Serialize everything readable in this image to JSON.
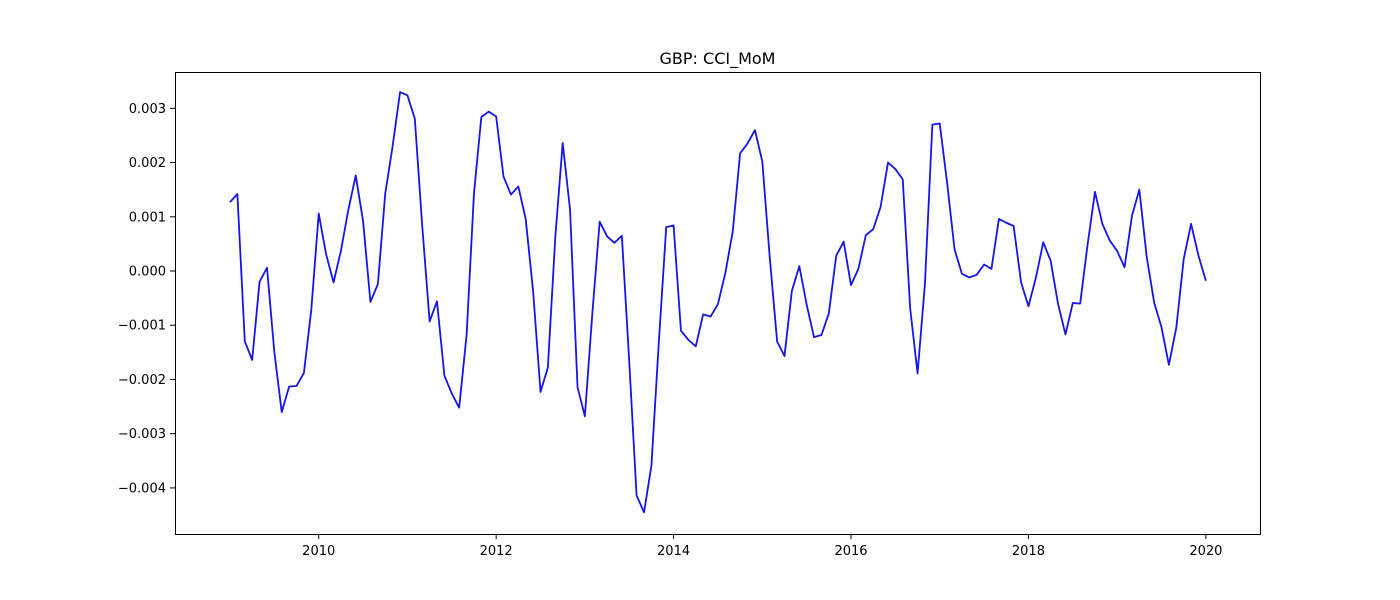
{
  "chart_data": {
    "type": "line",
    "title": "GBP: CCI_MoM",
    "xlabel": "",
    "ylabel": "",
    "xlim": [
      2008.38,
      2020.61
    ],
    "ylim": [
      -0.00485,
      0.00367
    ],
    "x_ticks": [
      2010,
      2012,
      2014,
      2016,
      2018,
      2020
    ],
    "y_ticks": [
      -0.004,
      -0.003,
      -0.002,
      -0.001,
      0.0,
      0.001,
      0.002,
      0.003
    ],
    "x_tick_labels": [
      "2010",
      "2012",
      "2014",
      "2016",
      "2018",
      "2020"
    ],
    "y_tick_labels": [
      "−0.004",
      "−0.003",
      "−0.002",
      "−0.001",
      "0.000",
      "0.001",
      "0.002",
      "0.003"
    ],
    "grid": false,
    "series": [
      {
        "color": "#1515e6",
        "x": [
          2009.0,
          2009.083,
          2009.167,
          2009.25,
          2009.333,
          2009.417,
          2009.5,
          2009.583,
          2009.667,
          2009.75,
          2009.833,
          2009.917,
          2010.0,
          2010.083,
          2010.167,
          2010.25,
          2010.333,
          2010.417,
          2010.5,
          2010.583,
          2010.667,
          2010.75,
          2010.833,
          2010.917,
          2011.0,
          2011.083,
          2011.167,
          2011.25,
          2011.333,
          2011.417,
          2011.5,
          2011.583,
          2011.667,
          2011.75,
          2011.833,
          2011.917,
          2012.0,
          2012.083,
          2012.167,
          2012.25,
          2012.333,
          2012.417,
          2012.5,
          2012.583,
          2012.667,
          2012.75,
          2012.833,
          2012.917,
          2013.0,
          2013.083,
          2013.167,
          2013.25,
          2013.333,
          2013.417,
          2013.5,
          2013.583,
          2013.667,
          2013.75,
          2013.833,
          2013.917,
          2014.0,
          2014.083,
          2014.167,
          2014.25,
          2014.333,
          2014.417,
          2014.5,
          2014.583,
          2014.667,
          2014.75,
          2014.833,
          2014.917,
          2015.0,
          2015.083,
          2015.167,
          2015.25,
          2015.333,
          2015.417,
          2015.5,
          2015.583,
          2015.667,
          2015.75,
          2015.833,
          2015.917,
          2016.0,
          2016.083,
          2016.167,
          2016.25,
          2016.333,
          2016.417,
          2016.5,
          2016.583,
          2016.667,
          2016.75,
          2016.833,
          2016.917,
          2017.0,
          2017.083,
          2017.167,
          2017.25,
          2017.333,
          2017.417,
          2017.5,
          2017.583,
          2017.667,
          2017.75,
          2017.833,
          2017.917,
          2018.0,
          2018.083,
          2018.167,
          2018.25,
          2018.333,
          2018.417,
          2018.5,
          2018.583,
          2018.667,
          2018.75,
          2018.833,
          2018.917,
          2019.0,
          2019.083,
          2019.167,
          2019.25,
          2019.333,
          2019.417,
          2019.5,
          2019.583,
          2019.667,
          2019.75,
          2019.833,
          2019.917,
          2020.0
        ],
        "values": [
          0.00127,
          0.00142,
          -0.0013,
          -0.00164,
          -0.0002,
          6e-05,
          -0.0015,
          -0.0026,
          -0.00213,
          -0.00212,
          -0.00188,
          -0.0007,
          0.00106,
          0.00031,
          -0.00021,
          0.00037,
          0.00112,
          0.00176,
          0.00092,
          -0.00057,
          -0.00024,
          0.00143,
          0.0023,
          0.0033,
          0.00324,
          0.00281,
          0.00083,
          -0.00093,
          -0.00056,
          -0.00193,
          -0.00226,
          -0.00252,
          -0.00118,
          0.00143,
          0.00284,
          0.00294,
          0.00285,
          0.00174,
          0.00141,
          0.00156,
          0.00096,
          -0.00038,
          -0.00223,
          -0.00178,
          0.00063,
          0.00236,
          0.00113,
          -0.00214,
          -0.00268,
          -0.00081,
          0.00091,
          0.00064,
          0.00052,
          0.00065,
          -0.00167,
          -0.00414,
          -0.00445,
          -0.00359,
          -0.00133,
          0.00081,
          0.00084,
          -0.0011,
          -0.00127,
          -0.00139,
          -0.0008,
          -0.00084,
          -0.00061,
          -4e-05,
          0.00073,
          0.00217,
          0.00235,
          0.0026,
          0.00202,
          0.00027,
          -0.0013,
          -0.00157,
          -0.00037,
          9e-05,
          -0.00062,
          -0.00122,
          -0.00118,
          -0.00078,
          0.00028,
          0.00054,
          -0.00026,
          4e-05,
          0.00066,
          0.00077,
          0.00118,
          0.002,
          0.00188,
          0.00169,
          -0.00069,
          -0.00189,
          -0.00024,
          0.0027,
          0.00272,
          0.00163,
          0.0004,
          -5e-05,
          -0.00012,
          -7e-05,
          0.00012,
          4e-05,
          0.00096,
          0.00089,
          0.00083,
          -0.00021,
          -0.00065,
          -0.00013,
          0.00053,
          0.00019,
          -0.0006,
          -0.00117,
          -0.00059,
          -0.0006,
          0.00049,
          0.00146,
          0.00087,
          0.00056,
          0.00037,
          7e-05,
          0.00102,
          0.0015,
          0.00026,
          -0.00058,
          -0.00104,
          -0.00173,
          -0.00104,
          0.00022,
          0.00087,
          0.00028,
          -0.00018
        ]
      }
    ]
  }
}
